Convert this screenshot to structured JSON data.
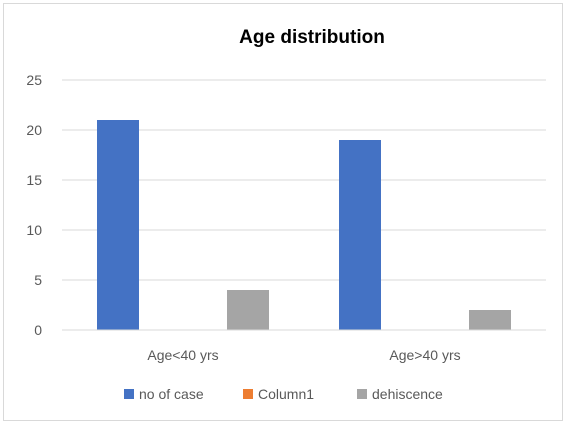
{
  "chart_data": {
    "type": "bar",
    "title": "Age distribution",
    "categories": [
      "Age<40 yrs",
      "Age>40 yrs"
    ],
    "series": [
      {
        "name": "no of case",
        "values": [
          21,
          19
        ],
        "color": "#4472c4"
      },
      {
        "name": "Column1",
        "values": [
          0,
          0
        ],
        "color": "#ed7d31"
      },
      {
        "name": "dehiscence",
        "values": [
          4,
          2
        ],
        "color": "#a5a5a5"
      }
    ],
    "ylim": [
      0,
      25
    ],
    "yticks": [
      "0",
      "5",
      "10",
      "15",
      "20",
      "25"
    ],
    "grid": true,
    "legend_position": "bottom"
  }
}
